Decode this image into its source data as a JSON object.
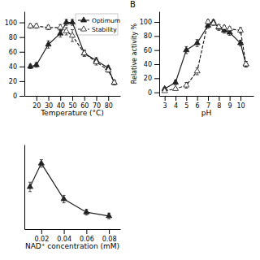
{
  "chart_data": [
    {
      "type": "line",
      "xlabel": "Temperature (°C)",
      "x": [
        15,
        20,
        30,
        40,
        45,
        50,
        60,
        70,
        80,
        85
      ],
      "series": [
        {
          "name": "Optimum",
          "color": "#222222",
          "marker": "triangle",
          "line_style": "solid",
          "values": [
            40,
            42,
            70,
            85,
            100,
            100,
            58,
            48,
            38,
            18
          ],
          "errors": [
            3,
            3,
            5,
            5,
            4,
            4,
            4,
            4,
            3,
            3
          ]
        },
        {
          "name": "Stability",
          "color": "#222222",
          "marker": "triangle-open",
          "line_style": "dashed",
          "values": [
            95,
            95,
            93,
            93,
            88,
            82,
            58,
            46,
            35,
            18
          ],
          "errors": [
            3,
            3,
            3,
            4,
            5,
            8,
            4,
            4,
            3,
            3
          ]
        }
      ],
      "xlim": [
        10,
        90
      ],
      "xticks": [
        20,
        30,
        40,
        50,
        60,
        70,
        80
      ],
      "ylim": [
        0,
        115
      ],
      "yticks": [
        0,
        20,
        40,
        60,
        80,
        100
      ],
      "legend": "upper right"
    },
    {
      "type": "line",
      "annotation": "B",
      "xlabel": "pH",
      "ylabel": "Relative activity %",
      "x": [
        3,
        4,
        5,
        6,
        7,
        7.5,
        8,
        8.5,
        9,
        10,
        10.5
      ],
      "series": [
        {
          "color": "#222222",
          "marker": "triangle",
          "line_style": "solid",
          "values": [
            5,
            14,
            60,
            70,
            95,
            100,
            92,
            88,
            85,
            70,
            40
          ],
          "errors": [
            2,
            3,
            5,
            5,
            4,
            3,
            4,
            4,
            4,
            4,
            4
          ]
        },
        {
          "color": "#222222",
          "marker": "triangle-open",
          "line_style": "dashed",
          "values": [
            2,
            5,
            10,
            30,
            100,
            98,
            93,
            92,
            90,
            88,
            40
          ],
          "errors": [
            1,
            2,
            4,
            5,
            3,
            3,
            3,
            3,
            3,
            4,
            4
          ]
        }
      ],
      "xlim": [
        2.5,
        11.2
      ],
      "xticks": [
        3,
        4,
        5,
        6,
        7,
        8,
        9,
        10
      ],
      "ylim": [
        -5,
        115
      ],
      "yticks": [
        0,
        20,
        40,
        60,
        80,
        100
      ]
    },
    {
      "type": "line",
      "xlabel": "NAD⁺ concentration (mM)",
      "x": [
        0.01,
        0.02,
        0.04,
        0.06,
        0.08
      ],
      "series": [
        {
          "color": "#222222",
          "marker": "triangle",
          "line_style": "solid",
          "values": [
            75,
            100,
            62,
            48,
            44
          ],
          "errors": [
            5,
            4,
            4,
            3,
            3
          ]
        }
      ],
      "xlim": [
        0.005,
        0.09
      ],
      "xticks": [
        0.02,
        0.04,
        0.06,
        0.08
      ],
      "ylim": [
        30,
        120
      ],
      "tick_labels": "x"
    }
  ]
}
